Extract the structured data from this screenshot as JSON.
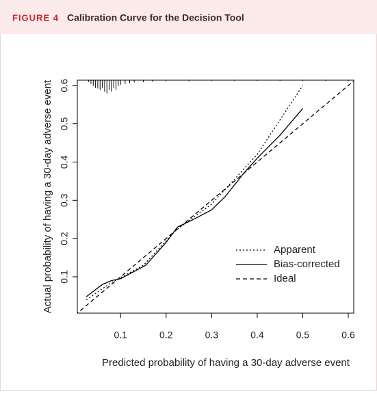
{
  "figure_label": "FIGURE 4",
  "chart_data": {
    "type": "line",
    "title": "Calibration Curve for the Decision Tool",
    "x_label": "Predicted probability of having a 30-day adverse event",
    "y_label": "Actual probability of having a 30-day adverse event",
    "xlim": [
      0.005,
      0.612
    ],
    "ylim": [
      0.005,
      0.614
    ],
    "xticks": [
      0.1,
      0.2,
      0.3,
      0.4,
      0.5,
      0.6
    ],
    "yticks": [
      0.1,
      0.2,
      0.3,
      0.4,
      0.5,
      0.6
    ],
    "legend": "lower right",
    "series": [
      {
        "name": "Apparent",
        "color": "#000000",
        "linestyle": "dotted",
        "x": [
          0.025,
          0.08,
          0.15,
          0.22,
          0.3,
          0.4,
          0.5
        ],
        "values": [
          0.04,
          0.085,
          0.13,
          0.22,
          0.29,
          0.42,
          0.6
        ]
      },
      {
        "name": "Bias-corrected",
        "color": "#000000",
        "linestyle": "solid",
        "x": [
          0.025,
          0.06,
          0.08,
          0.1,
          0.155,
          0.2,
          0.225,
          0.26,
          0.3,
          0.33,
          0.37,
          0.4,
          0.45,
          0.5
        ],
        "values": [
          0.048,
          0.08,
          0.09,
          0.095,
          0.13,
          0.19,
          0.23,
          0.25,
          0.275,
          0.31,
          0.37,
          0.41,
          0.47,
          0.54
        ]
      },
      {
        "name": "Ideal",
        "color": "#000000",
        "linestyle": "dashed",
        "x": [
          0,
          0.62
        ],
        "values": [
          0,
          0.62
        ]
      }
    ],
    "rug": {
      "x": [
        0.03,
        0.035,
        0.04,
        0.045,
        0.05,
        0.055,
        0.06,
        0.065,
        0.07,
        0.075,
        0.08,
        0.085,
        0.09,
        0.095,
        0.1,
        0.11,
        0.12,
        0.13,
        0.15,
        0.17,
        0.2,
        0.25,
        0.3,
        0.35,
        0.4,
        0.45,
        0.5,
        0.55,
        0.6
      ],
      "values": [
        0.005,
        0.01,
        0.015,
        0.02,
        0.022,
        0.025,
        0.02,
        0.03,
        0.035,
        0.025,
        0.03,
        0.02,
        0.025,
        0.015,
        0.012,
        0.01,
        0.008,
        0.006,
        0.005,
        0.004,
        0.003,
        0.003,
        0.002,
        0.002,
        0.002,
        0.002,
        0.002,
        0.002,
        0.002
      ]
    }
  }
}
